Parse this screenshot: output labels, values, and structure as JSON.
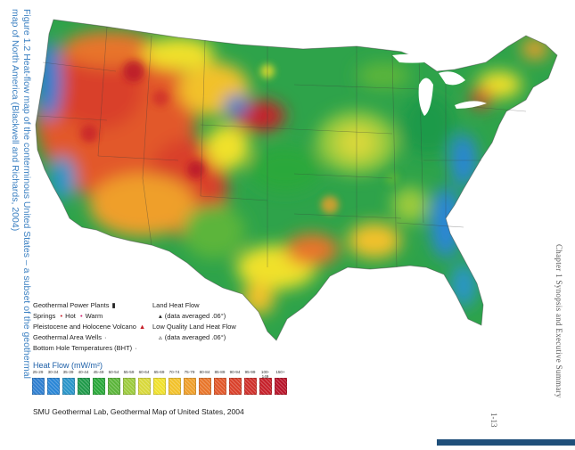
{
  "side_caption": "Figure 1.2 Heat-flow map of the conterminous United States – a subset of the geothermal map of North America (Blackwell and Richards, 2004)",
  "chapter_label": "Chapter 1  Synopsis and Executive Summary",
  "page_number": "1-13",
  "legend": {
    "power_plants": "Geothermal Power Plants",
    "springs_label": "Springs",
    "springs_hot": "Hot",
    "springs_warm": "Warm",
    "volcano": "Pleistocene and Holocene Volcano",
    "area_wells": "Geothermal Area Wells",
    "bht": "Bottom Hole Temperatures (BHT)",
    "land_heat_flow": "Land Heat Flow",
    "land_heat_flow_note": "(data averaged .06°)",
    "low_quality": "Low Quality Land Heat Flow",
    "low_quality_note": "(data averaged .06°)"
  },
  "heat_flow_title": "Heat Flow (mW/m²)",
  "heat_flow_scale": [
    {
      "label": "25-29",
      "color": "#2f7fd0"
    },
    {
      "label": "30-34",
      "color": "#2a86d6"
    },
    {
      "label": "35-39",
      "color": "#2a95c9"
    },
    {
      "label": "40-44",
      "color": "#1f9a4a"
    },
    {
      "label": "45-49",
      "color": "#2aa83a"
    },
    {
      "label": "50-54",
      "color": "#5bb53a"
    },
    {
      "label": "55-59",
      "color": "#9ccb3d"
    },
    {
      "label": "60-64",
      "color": "#d8d83a"
    },
    {
      "label": "65-69",
      "color": "#f0e12c"
    },
    {
      "label": "70-74",
      "color": "#f2c12a"
    },
    {
      "label": "75-79",
      "color": "#ef9f2a"
    },
    {
      "label": "80-84",
      "color": "#e8752a"
    },
    {
      "label": "85-89",
      "color": "#e2582a"
    },
    {
      "label": "90-94",
      "color": "#d9402a"
    },
    {
      "label": "95-99",
      "color": "#cf2f2a"
    },
    {
      "label": "100-149",
      "color": "#c6202a"
    },
    {
      "label": "150+",
      "color": "#b8142a"
    }
  ],
  "source": "SMU Geothermal Lab, Geothermal Map of United States, 2004"
}
